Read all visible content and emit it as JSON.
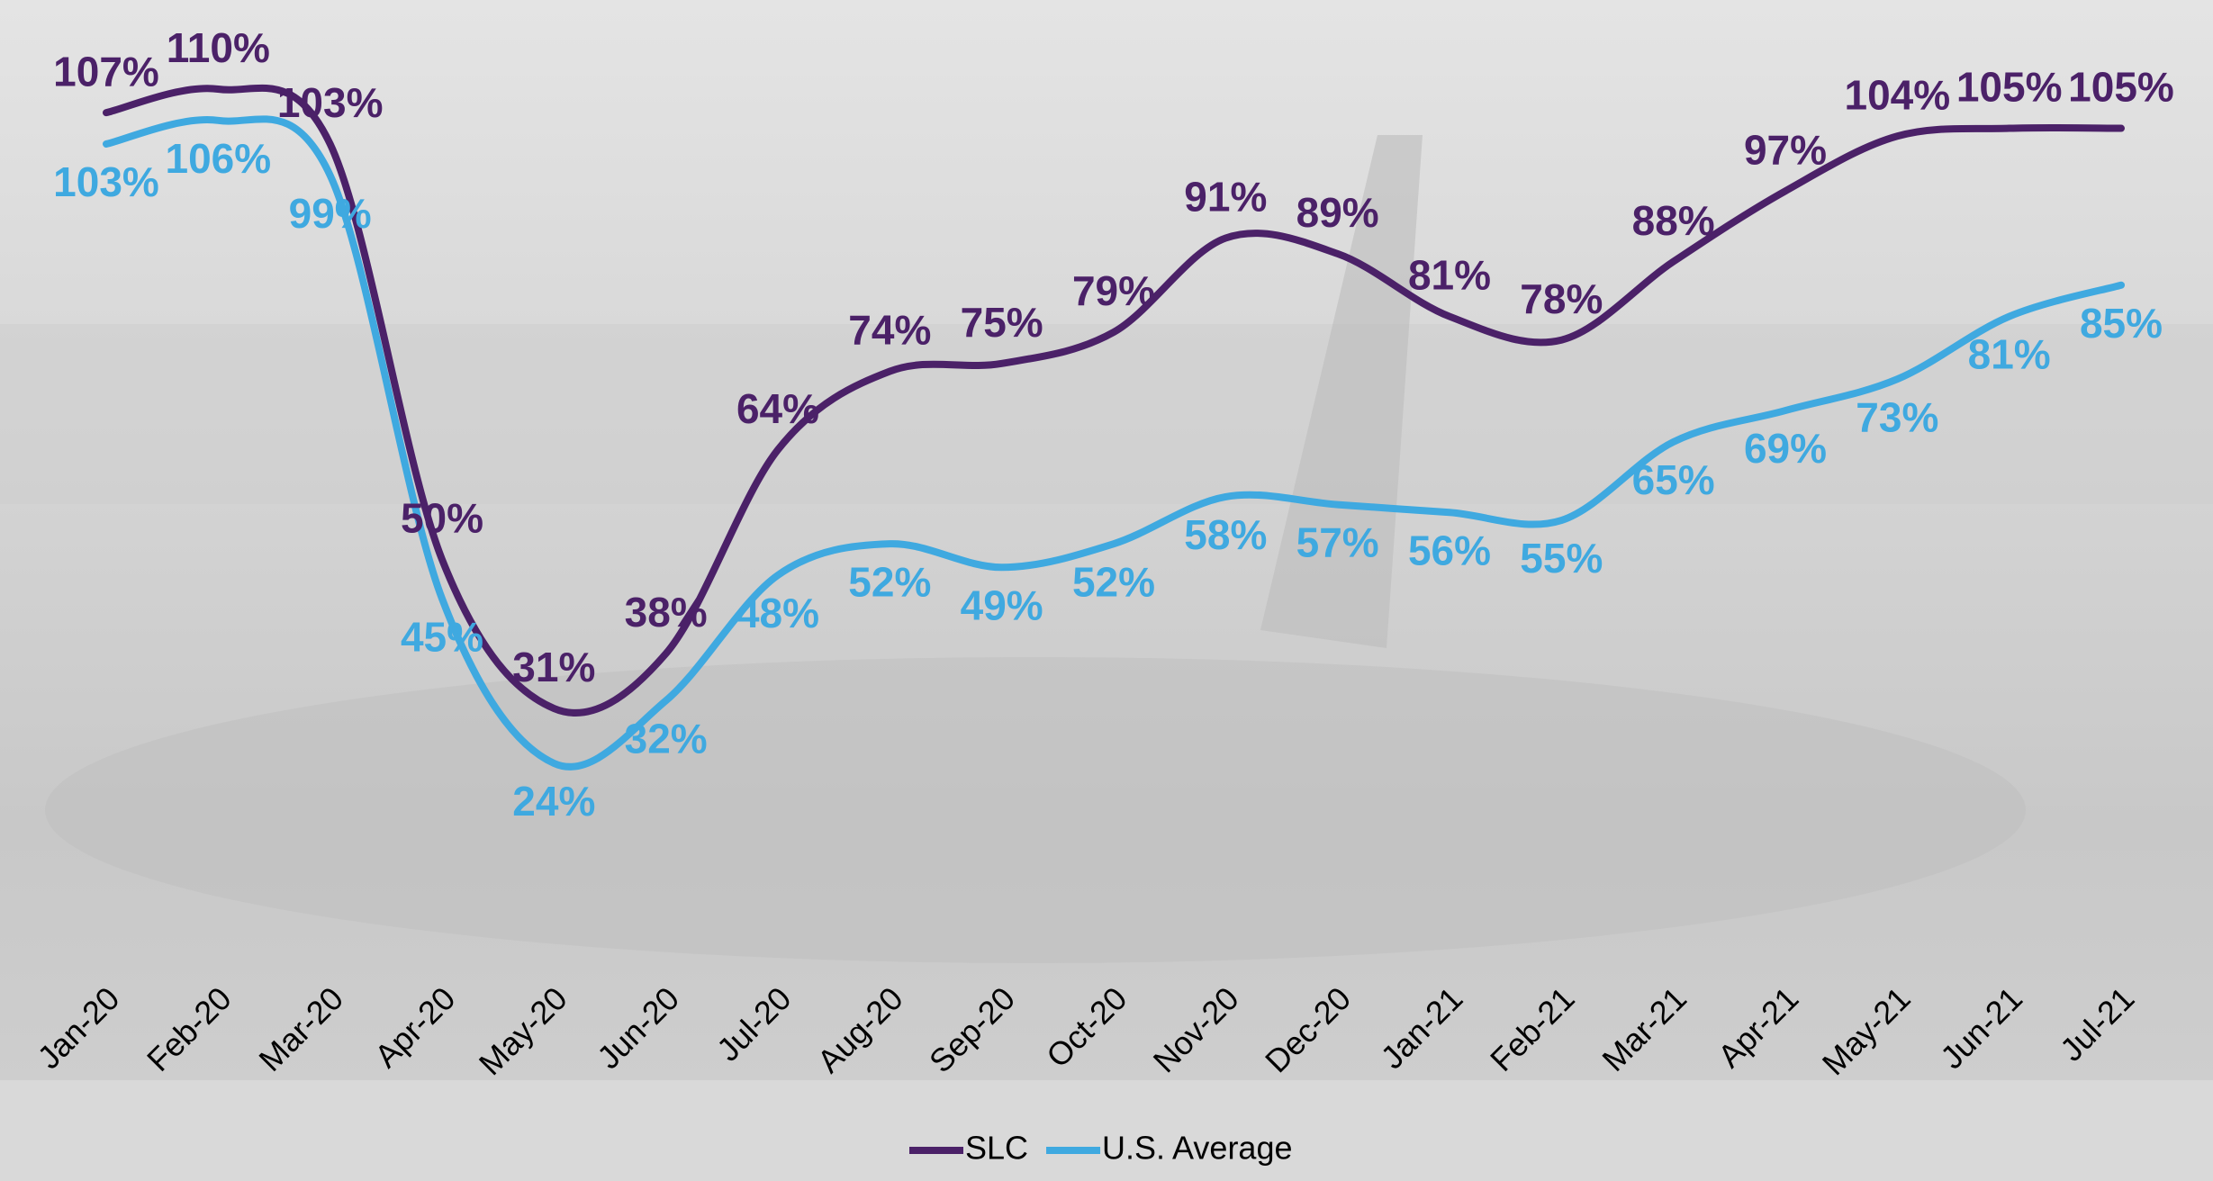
{
  "chart_data": {
    "type": "line",
    "categories": [
      "Jan-20",
      "Feb-20",
      "Mar-20",
      "Apr-20",
      "May-20",
      "Jun-20",
      "Jul-20",
      "Aug-20",
      "Sep-20",
      "Oct-20",
      "Nov-20",
      "Dec-20",
      "Jan-21",
      "Feb-21",
      "Mar-21",
      "Apr-21",
      "May-21",
      "Jun-21",
      "Jul-21"
    ],
    "series": [
      {
        "name": "SLC",
        "color": "#4b2168",
        "values": [
          107,
          110,
          103,
          50,
          31,
          38,
          64,
          74,
          75,
          79,
          91,
          89,
          81,
          78,
          88,
          97,
          104,
          105,
          105
        ],
        "value_labels": [
          "107%",
          "110%",
          "103%",
          "50%",
          "31%",
          "38%",
          "64%",
          "74%",
          "75%",
          "79%",
          "91%",
          "89%",
          "81%",
          "78%",
          "88%",
          "97%",
          "104%",
          "105%",
          "105%"
        ]
      },
      {
        "name": "U.S. Average",
        "color": "#3fa9e0",
        "values": [
          103,
          106,
          99,
          45,
          24,
          32,
          48,
          52,
          49,
          52,
          58,
          57,
          56,
          55,
          65,
          69,
          73,
          81,
          85
        ],
        "value_labels": [
          "103%",
          "106%",
          "99%",
          "45%",
          "24%",
          "32%",
          "48%",
          "52%",
          "49%",
          "52%",
          "58%",
          "57%",
          "56%",
          "55%",
          "65%",
          "69%",
          "73%",
          "81%",
          "85%"
        ]
      }
    ],
    "legend": "bottom"
  }
}
